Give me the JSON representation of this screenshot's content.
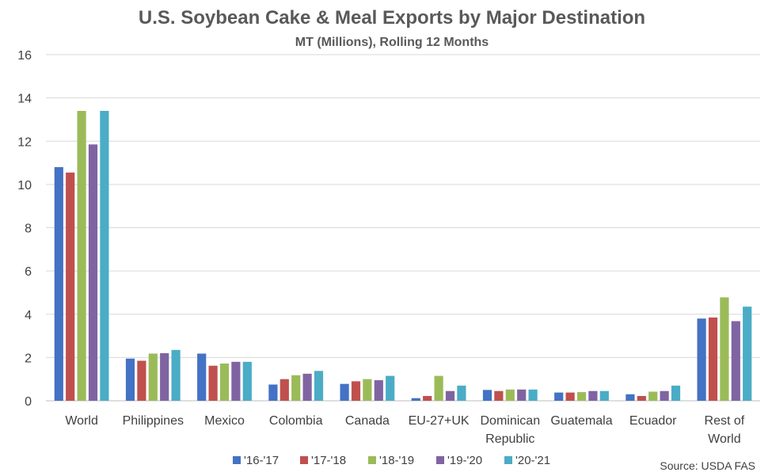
{
  "chart_data": {
    "type": "bar",
    "title": "U.S. Soybean Cake & Meal Exports by Major Destination",
    "subtitle": "MT (Millions), Rolling 12 Months",
    "xlabel": "",
    "ylabel": "",
    "ylim": [
      0,
      16
    ],
    "yticks": [
      0,
      2,
      4,
      6,
      8,
      10,
      12,
      14,
      16
    ],
    "grid": true,
    "legend_position": "bottom",
    "categories": [
      "World",
      "Philippines",
      "Mexico",
      "Colombia",
      "Canada",
      "EU-27+UK",
      "Dominican Republic",
      "Guatemala",
      "Ecuador",
      "Rest of World"
    ],
    "series": [
      {
        "name": "'16-'17",
        "color": "#4472c4",
        "values": [
          10.8,
          1.95,
          2.18,
          0.75,
          0.78,
          0.12,
          0.5,
          0.38,
          0.3,
          3.8
        ]
      },
      {
        "name": "'17-'18",
        "color": "#c0504d",
        "values": [
          10.55,
          1.85,
          1.62,
          1.0,
          0.9,
          0.22,
          0.45,
          0.38,
          0.22,
          3.85
        ]
      },
      {
        "name": "'18-'19",
        "color": "#9bbb59",
        "values": [
          13.4,
          2.18,
          1.72,
          1.18,
          1.0,
          1.15,
          0.52,
          0.4,
          0.42,
          4.78
        ]
      },
      {
        "name": "'19-'20",
        "color": "#8064a2",
        "values": [
          11.85,
          2.2,
          1.8,
          1.25,
          0.95,
          0.45,
          0.52,
          0.45,
          0.45,
          3.68
        ]
      },
      {
        "name": "'20-'21",
        "color": "#4bacc6",
        "values": [
          13.4,
          2.35,
          1.8,
          1.38,
          1.15,
          0.7,
          0.52,
          0.45,
          0.7,
          4.35
        ]
      }
    ],
    "source": "Source: USDA FAS"
  }
}
